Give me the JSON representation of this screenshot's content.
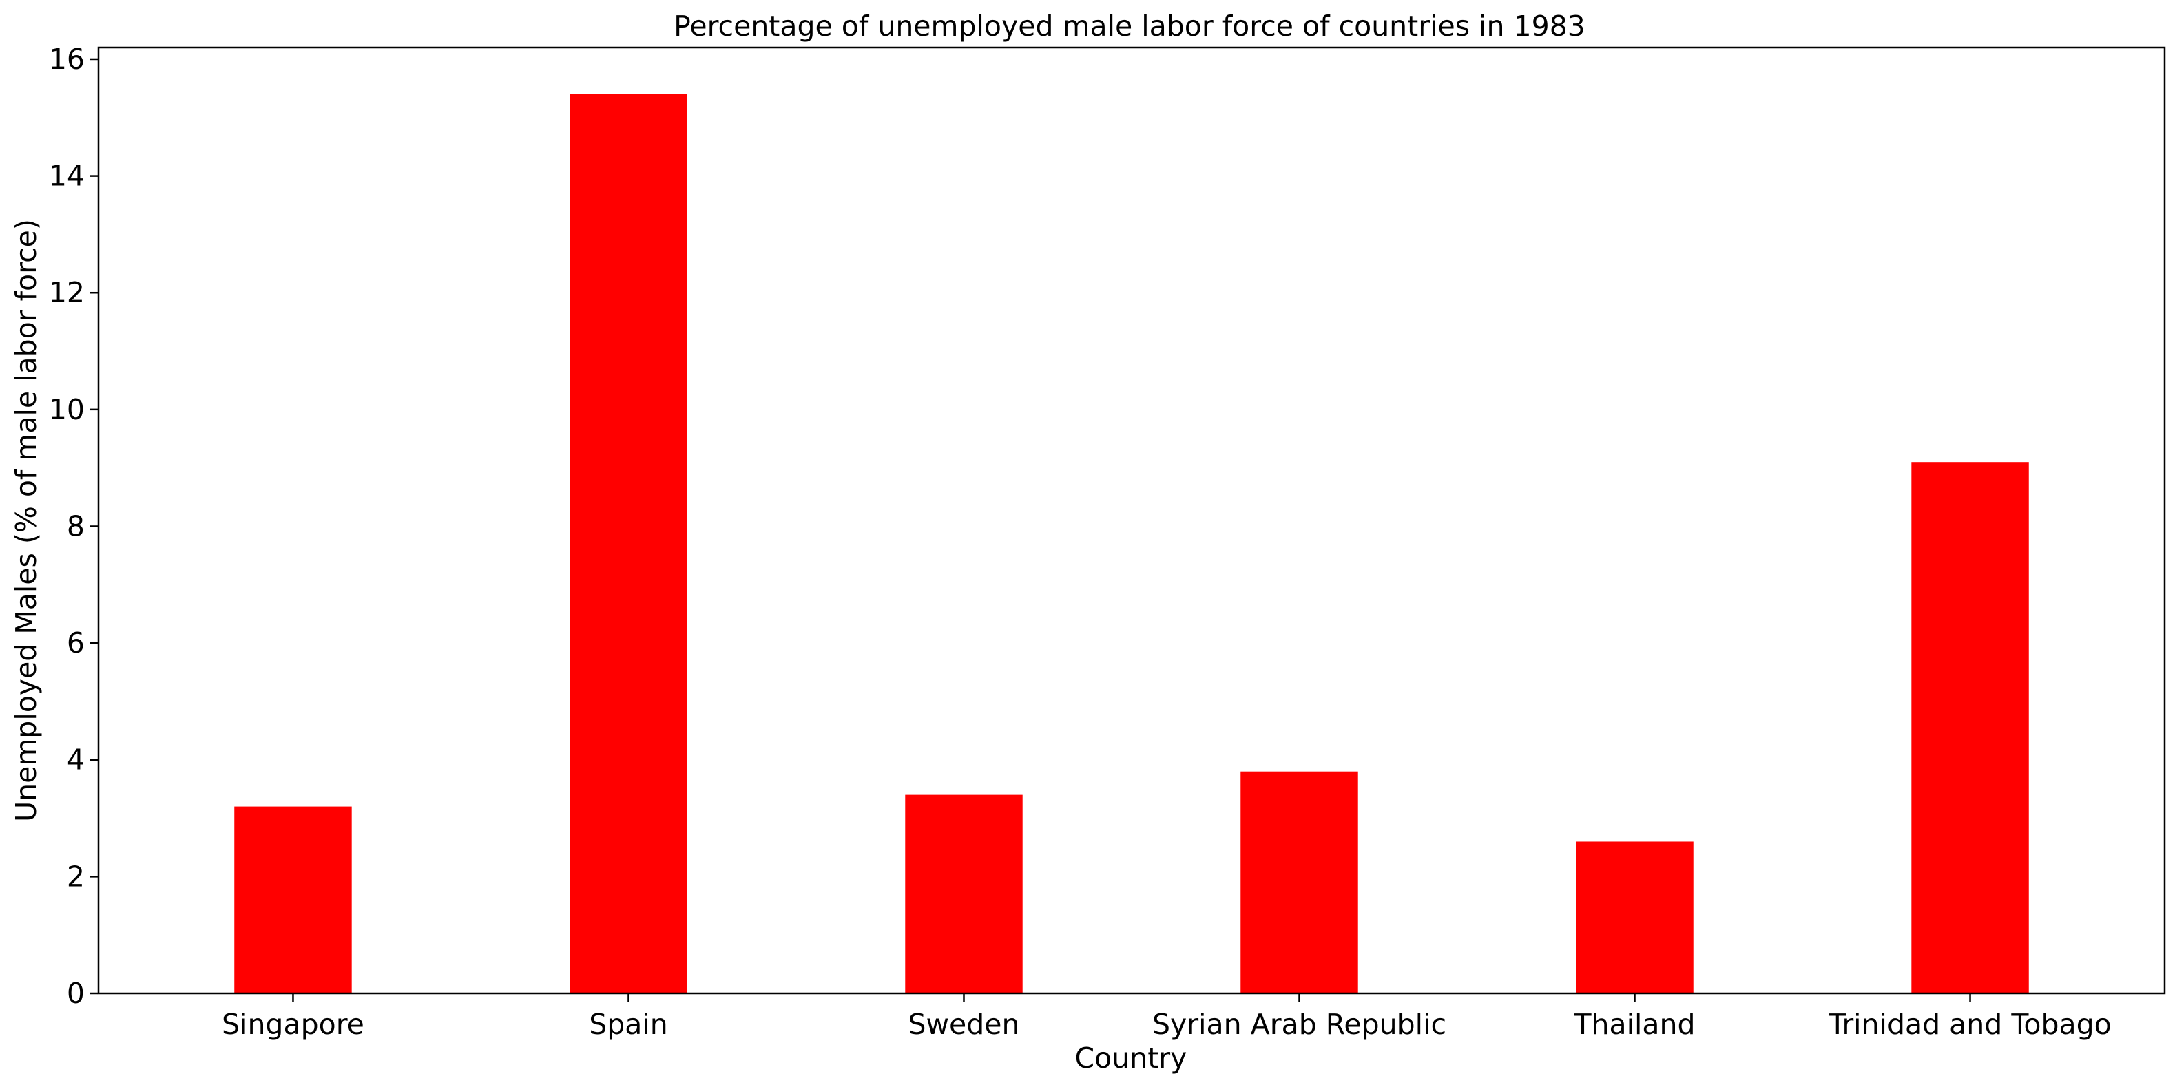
{
  "chart_data": {
    "type": "bar",
    "title": "Percentage of unemployed male labor force of countries in 1983",
    "xlabel": "Country",
    "ylabel": "Unemployed Males (% of male labor force)",
    "categories": [
      "Singapore",
      "Spain",
      "Sweden",
      "Syrian Arab Republic",
      "Thailand",
      "Trinidad and Tobago"
    ],
    "values": [
      3.2,
      15.4,
      3.4,
      3.8,
      2.6,
      9.1
    ],
    "ylim": [
      0,
      16.2
    ],
    "yticks": [
      0,
      2,
      4,
      6,
      8,
      10,
      12,
      14,
      16
    ],
    "yticklabels": [
      "0",
      "2",
      "4",
      "6",
      "8",
      "10",
      "12",
      "14",
      "16"
    ],
    "bar_color": "#ff0000",
    "grid": false,
    "legend": "none"
  }
}
